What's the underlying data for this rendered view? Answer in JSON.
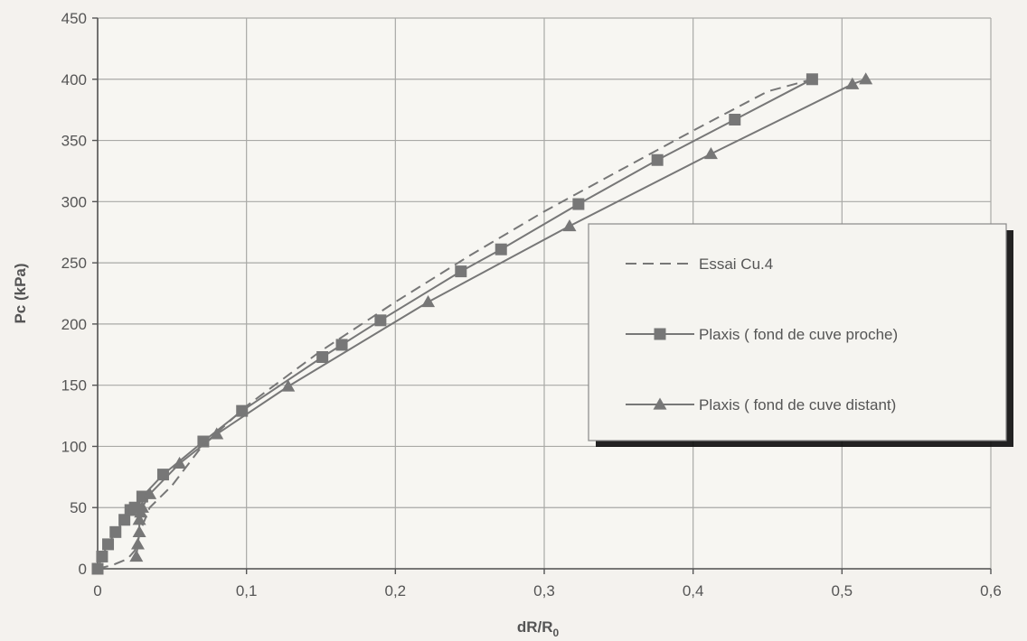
{
  "chart_data": {
    "type": "line",
    "title": "",
    "xlabel": "dR/R",
    "xlabel_sub": "0",
    "ylabel": "Pc (kPa)",
    "xlim": [
      0,
      0.6
    ],
    "ylim": [
      0,
      450
    ],
    "x_ticks": [
      "0",
      "0,1",
      "0,2",
      "0,3",
      "0,4",
      "0,5",
      "0,6"
    ],
    "x_tick_values": [
      0,
      0.1,
      0.2,
      0.3,
      0.4,
      0.5,
      0.6
    ],
    "y_ticks": [
      "0",
      "50",
      "100",
      "150",
      "200",
      "250",
      "300",
      "350",
      "400",
      "450"
    ],
    "y_tick_values": [
      0,
      50,
      100,
      150,
      200,
      250,
      300,
      350,
      400,
      450
    ],
    "grid": true,
    "legend_position": "right",
    "series": [
      {
        "name": "Essai Cu.4",
        "style": "dashed",
        "marker": "none",
        "color": "#777777",
        "x": [
          0,
          0.01,
          0.02,
          0.025,
          0.03,
          0.035,
          0.05,
          0.07,
          0.1,
          0.15,
          0.2,
          0.25,
          0.3,
          0.35,
          0.4,
          0.45,
          0.48
        ],
        "y": [
          0,
          3,
          8,
          15,
          35,
          50,
          68,
          100,
          133,
          178,
          218,
          256,
          292,
          325,
          358,
          390,
          400
        ]
      },
      {
        "name": "Plaxis ( fond de cuve proche)",
        "style": "solid",
        "marker": "square",
        "color": "#777777",
        "x": [
          0,
          0.003,
          0.007,
          0.012,
          0.018,
          0.022,
          0.025,
          0.03,
          0.044,
          0.071,
          0.097,
          0.151,
          0.164,
          0.19,
          0.244,
          0.271,
          0.323,
          0.376,
          0.428,
          0.48
        ],
        "y": [
          0,
          10,
          20,
          30,
          40,
          48,
          50,
          59,
          77,
          104,
          129,
          173,
          183,
          203,
          243,
          261,
          298,
          334,
          367,
          400
        ]
      },
      {
        "name": "Plaxis ( fond de cuve distant)",
        "style": "solid",
        "marker": "triangle",
        "color": "#777777",
        "x": [
          0.026,
          0.027,
          0.028,
          0.028,
          0.029,
          0.03,
          0.035,
          0.055,
          0.08,
          0.128,
          0.222,
          0.317,
          0.412,
          0.507,
          0.516
        ],
        "y": [
          10,
          20,
          30,
          40,
          46,
          50,
          61,
          86,
          110,
          149,
          218,
          280,
          339,
          396,
          400
        ]
      }
    ]
  }
}
